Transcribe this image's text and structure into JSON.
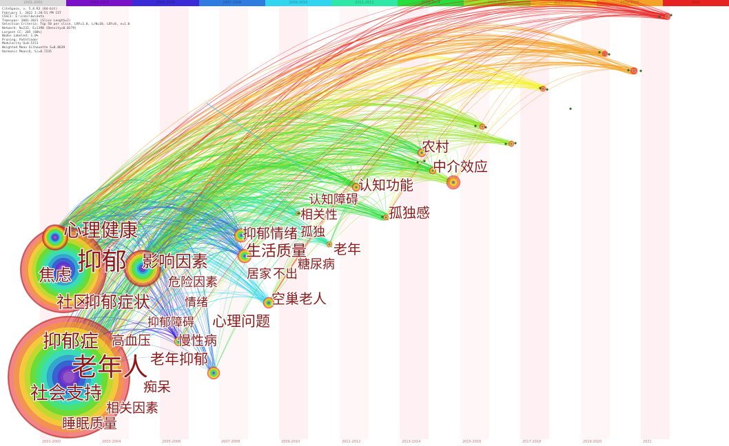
{
  "timeline": {
    "slices": [
      {
        "label": "2001-2002",
        "color": "#d9d9d9"
      },
      {
        "label": "2003-2004",
        "color": "#7a11c9"
      },
      {
        "label": "2005-2006",
        "color": "#3a2bd6"
      },
      {
        "label": "2007-2008",
        "color": "#2f7be0"
      },
      {
        "label": "2009-2010",
        "color": "#31d5f0"
      },
      {
        "label": "2011-2012",
        "color": "#2fe8a8"
      },
      {
        "label": "2013-2014",
        "color": "#27df3b"
      },
      {
        "label": "2015-2016",
        "color": "#95e52a"
      },
      {
        "label": "2017-2018",
        "color": "#f4f42a"
      },
      {
        "label": "2019-2020",
        "color": "#f4a328"
      },
      {
        "label": "2021",
        "color": "#e72222"
      }
    ]
  },
  "meta_lines": [
    "CiteSpace, v. 5.8.R3 (64-bit)",
    "February 1, 2022 1:28:51 PM CST",
    "CSSCI: E:\\cnki\\kw\\data",
    "Timespan: 2001-2021 (Slice Length=2)",
    "Selection Criteria: Top 50 per slice, LRF=3.0, L/N=10, LBY=8, e=1.0",
    "Network: N=232, E=1390 (Density=0.0379)",
    "Largest CC: 205 (88%)",
    "Nodes Labeled: 1.0%",
    "Pruning: Pathfinder",
    "Modularity Q=0.5151",
    "Weighted Mean Silhouette S=0.8639",
    "Harmonic Mean(Q, S)=0.7235"
  ],
  "keywords": [
    {
      "id": "k1",
      "label": "心理健康"
    },
    {
      "id": "k2",
      "label": "抑郁"
    },
    {
      "id": "k3",
      "label": "影响因素"
    },
    {
      "id": "k4",
      "label": "焦虑"
    },
    {
      "id": "k5",
      "label": "危险因素"
    },
    {
      "id": "k6",
      "label": "社区"
    },
    {
      "id": "k7",
      "label": "抑郁症状"
    },
    {
      "id": "k8",
      "label": "情绪"
    },
    {
      "id": "k9",
      "label": "抑郁障碍"
    },
    {
      "id": "k10",
      "label": "心理问题"
    },
    {
      "id": "k11",
      "label": "抑郁症"
    },
    {
      "id": "k12",
      "label": "高血压"
    },
    {
      "id": "k13",
      "label": "慢性病"
    },
    {
      "id": "k14",
      "label": "老年人"
    },
    {
      "id": "k15",
      "label": "老年抑郁"
    },
    {
      "id": "k16",
      "label": "痴呆"
    },
    {
      "id": "k17",
      "label": "社会支持"
    },
    {
      "id": "k18",
      "label": "相关因素"
    },
    {
      "id": "k19",
      "label": "睡眠质量"
    },
    {
      "id": "k20",
      "label": "农村"
    },
    {
      "id": "k21",
      "label": "中介效应"
    },
    {
      "id": "k22",
      "label": "认知功能"
    },
    {
      "id": "k23",
      "label": "认知障碍"
    },
    {
      "id": "k24",
      "label": "相关性"
    },
    {
      "id": "k25",
      "label": "孤独感"
    },
    {
      "id": "k26",
      "label": "抑郁情绪"
    },
    {
      "id": "k27",
      "label": "孤独"
    },
    {
      "id": "k28",
      "label": "生活质量"
    },
    {
      "id": "k29",
      "label": "老年"
    },
    {
      "id": "k30",
      "label": "糖尿病"
    },
    {
      "id": "k31",
      "label": "居家"
    },
    {
      "id": "k32",
      "label": "不出"
    },
    {
      "id": "k33",
      "label": "空巢老人"
    }
  ],
  "year_axis": [
    "2001-2002",
    "2003-2004",
    "2005-2006",
    "2007-2008",
    "2009-2010",
    "2011-2012",
    "2013-2014",
    "2015-2016",
    "2017-2018",
    "2019-2020",
    "2021"
  ]
}
